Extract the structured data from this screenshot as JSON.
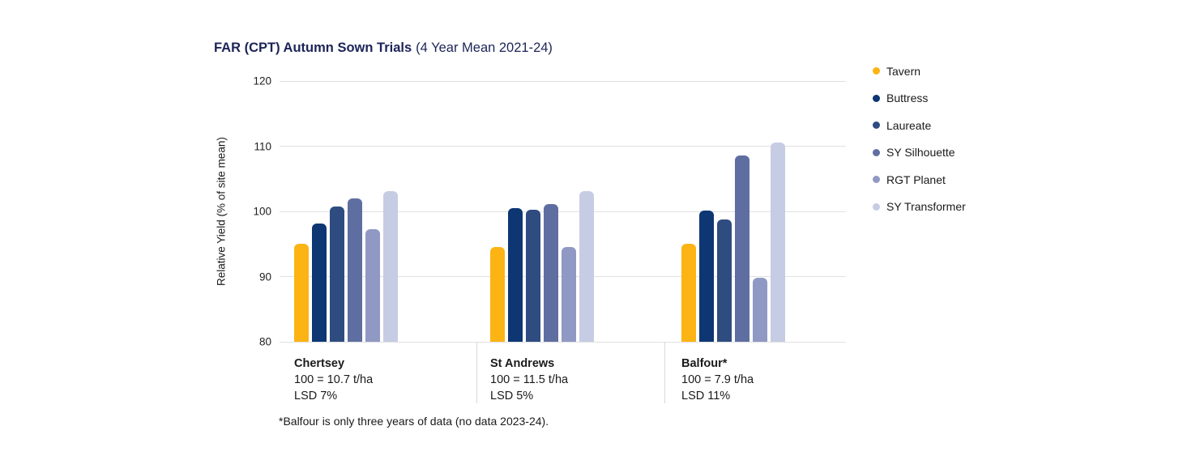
{
  "title": {
    "bold": "FAR (CPT) Autumn Sown Trials",
    "regular": "(4 Year Mean 2021-24)"
  },
  "footnote": "*Balfour is only three years of data (no data 2023-24).",
  "colors": {
    "title_navy": "#1c2457",
    "gridline": "#e1e1e1",
    "divider": "#d9d9d9",
    "text": "#1a1a1a"
  },
  "chart_data": {
    "type": "bar",
    "title": "FAR (CPT) Autumn Sown Trials (4 Year Mean 2021-24)",
    "xlabel": "",
    "ylabel": "Relative Yield (% of site mean)",
    "ylim": [
      80,
      120
    ],
    "yticks": [
      80,
      90,
      100,
      110,
      120
    ],
    "grid": true,
    "legend_position": "right",
    "categories": [
      "Chertsey",
      "St Andrews",
      "Balfour*"
    ],
    "group_details": [
      {
        "name": "Chertsey",
        "scale": "100 = 10.7 t/ha",
        "lsd": "LSD 7%"
      },
      {
        "name": "St Andrews",
        "scale": "100 = 11.5 t/ha",
        "lsd": "LSD 5%"
      },
      {
        "name": "Balfour*",
        "scale": "100 = 7.9 t/ha",
        "lsd": "LSD 11%"
      }
    ],
    "series": [
      {
        "name": "Tavern",
        "color": "#fbb414",
        "values": [
          95.0,
          94.5,
          95.0
        ]
      },
      {
        "name": "Buttress",
        "color": "#0d3673",
        "values": [
          98.2,
          100.5,
          100.1
        ]
      },
      {
        "name": "Laureate",
        "color": "#2f4c80",
        "values": [
          100.8,
          100.2,
          98.8
        ]
      },
      {
        "name": "SY Silhouette",
        "color": "#5f6ea1",
        "values": [
          102.0,
          101.1,
          108.6
        ]
      },
      {
        "name": "RGT Planet",
        "color": "#8f99c3",
        "values": [
          97.3,
          94.6,
          89.8
        ]
      },
      {
        "name": "SY Transformer",
        "color": "#c6cce3",
        "values": [
          103.1,
          103.1,
          110.6
        ]
      }
    ]
  }
}
